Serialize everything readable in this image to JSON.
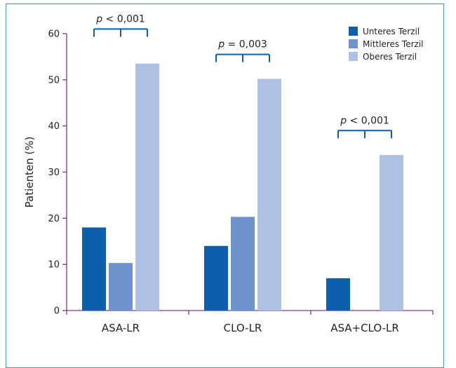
{
  "chart_data": {
    "type": "bar",
    "categories": [
      "ASA-LR",
      "CLO-LR",
      "ASA+CLO-LR"
    ],
    "series": [
      {
        "name": "Unteres Terzil",
        "values": [
          18,
          14,
          7
        ],
        "color": "#0b5fad"
      },
      {
        "name": "Mittleres Terzil",
        "values": [
          10.3,
          20.3,
          null
        ],
        "color": "#6f93cf"
      },
      {
        "name": "Oberes Terzil",
        "values": [
          53.5,
          50.2,
          33.7
        ],
        "color": "#aec0e4"
      }
    ],
    "ylabel": "Patienten (%)",
    "xlabel": "",
    "ylim": [
      0,
      60
    ],
    "yticks": [
      0,
      10,
      20,
      30,
      40,
      50,
      60
    ],
    "legend_position": "top-right",
    "axis_color": "#7a3d7a",
    "bracket_color": "#0b5fad",
    "annotations": [
      {
        "category": "ASA-LR",
        "prefix": "p",
        "text": " < 0,001",
        "y": 61
      },
      {
        "category": "CLO-LR",
        "prefix": "p",
        "text": " = 0,003",
        "y": 55.5
      },
      {
        "category": "ASA+CLO-LR",
        "prefix": "p",
        "text": " < 0,001",
        "y": 39
      }
    ]
  }
}
